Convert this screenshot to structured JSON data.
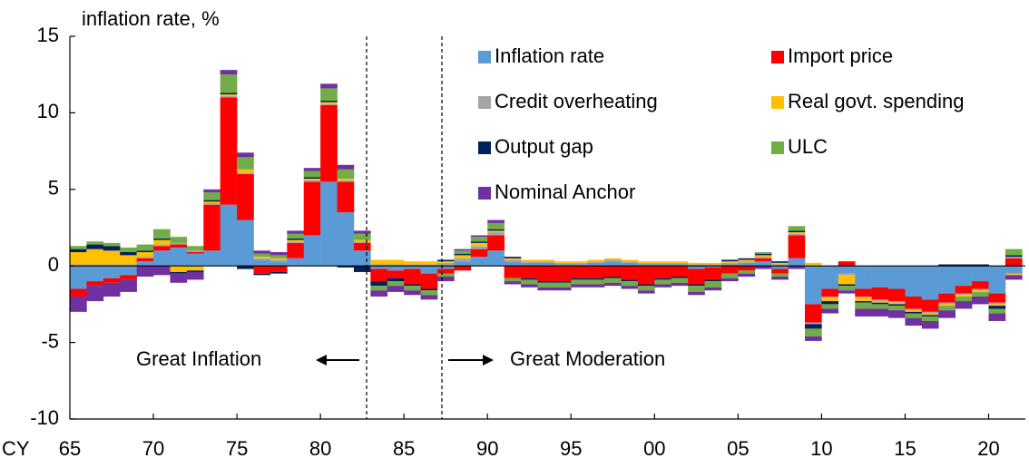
{
  "chart_data": {
    "type": "stacked_bar",
    "y_label": "inflation rate, %",
    "x_label": "CY",
    "annotations": [
      "Great Inflation",
      "Great Moderation"
    ],
    "x": [
      1965,
      1966,
      1967,
      1968,
      1969,
      1970,
      1971,
      1972,
      1973,
      1974,
      1975,
      1976,
      1977,
      1978,
      1979,
      1980,
      1981,
      1982,
      1983,
      1984,
      1985,
      1986,
      1987,
      1988,
      1989,
      1990,
      1991,
      1992,
      1993,
      1994,
      1995,
      1996,
      1997,
      1998,
      1999,
      2000,
      2001,
      2002,
      2003,
      2004,
      2005,
      2006,
      2007,
      2008,
      2009,
      2010,
      2011,
      2012,
      2013,
      2014,
      2015,
      2016,
      2017,
      2018,
      2019,
      2020,
      2021
    ],
    "xlim": [
      1965,
      2022.2
    ],
    "xticks": [
      {
        "value": 1965,
        "label": "65"
      },
      {
        "value": 1970,
        "label": "70"
      },
      {
        "value": 1975,
        "label": "75"
      },
      {
        "value": 1980,
        "label": "80"
      },
      {
        "value": 1985,
        "label": "85"
      },
      {
        "value": 1990,
        "label": "90"
      },
      {
        "value": 1995,
        "label": "95"
      },
      {
        "value": 2000,
        "label": "00"
      },
      {
        "value": 2005,
        "label": "05"
      },
      {
        "value": 2010,
        "label": "10"
      },
      {
        "value": 2015,
        "label": "15"
      },
      {
        "value": 2020,
        "label": "20"
      }
    ],
    "ylim": [
      -10,
      15
    ],
    "yticks": [
      -10,
      -5,
      0,
      5,
      10,
      15
    ],
    "series": [
      {
        "name": "Inflation rate",
        "color": "#5b9bd5",
        "values": [
          -1.5,
          -1.0,
          -0.8,
          -0.6,
          0.3,
          1.0,
          1.2,
          0.8,
          1.0,
          4.0,
          3.0,
          0.4,
          0.3,
          0.5,
          2.0,
          5.5,
          3.5,
          1.0,
          -0.2,
          -0.3,
          -0.2,
          -0.5,
          -0.2,
          0.3,
          0.6,
          1.0,
          0.3,
          0.2,
          0.2,
          0.1,
          0.1,
          0.2,
          0.3,
          0.2,
          0.1,
          0.1,
          0.1,
          -0.2,
          -0.1,
          0.1,
          0.2,
          0.3,
          -0.2,
          0.5,
          -2.5,
          -1.5,
          -0.5,
          -1.5,
          -1.4,
          -1.5,
          -2.0,
          -2.2,
          -1.8,
          -1.3,
          -1.0,
          -1.8,
          -0.5
        ]
      },
      {
        "name": "Import price",
        "color": "#ff0000",
        "values": [
          -0.5,
          -0.3,
          -0.3,
          -0.3,
          0.2,
          0.3,
          0.2,
          0.1,
          3.0,
          7.0,
          3.0,
          -0.5,
          -0.4,
          1.0,
          3.5,
          5.0,
          2.0,
          0.5,
          -0.8,
          -0.5,
          -1.0,
          -1.0,
          -0.3,
          -0.3,
          0.5,
          1.0,
          -0.8,
          -0.8,
          -1.0,
          -1.0,
          -0.8,
          -0.8,
          -0.7,
          -0.9,
          -1.2,
          -0.8,
          -0.7,
          -1.0,
          -0.8,
          -0.5,
          -0.3,
          0.2,
          -0.3,
          1.5,
          -1.2,
          -0.5,
          0.3,
          -0.5,
          -0.8,
          -0.8,
          -0.8,
          -0.8,
          -0.6,
          -0.5,
          -0.5,
          -0.6,
          0.5
        ]
      },
      {
        "name": "Credit overheating",
        "color": "#a5a5a5",
        "values": [
          0.1,
          0.1,
          0.1,
          0.1,
          0.1,
          0.1,
          0.1,
          0.1,
          0.1,
          0.1,
          0.1,
          0.1,
          0.1,
          0.1,
          0.1,
          0.1,
          0.1,
          0.1,
          0.1,
          0.1,
          0.1,
          0.1,
          0.2,
          0.2,
          0.2,
          0.2,
          0.1,
          0.1,
          0.1,
          0.1,
          0.1,
          0.1,
          0.1,
          0.1,
          0.1,
          0.1,
          0.1,
          0.1,
          0.1,
          0.1,
          0.1,
          0.1,
          0.1,
          0.1,
          -0.1,
          -0.1,
          -0.1,
          -0.1,
          -0.1,
          -0.1,
          -0.1,
          -0.1,
          -0.1,
          -0.1,
          -0.1,
          -0.1,
          0.1
        ]
      },
      {
        "name": "Real govt. spending",
        "color": "#ffc000",
        "values": [
          0.8,
          1.0,
          0.9,
          0.6,
          0.3,
          0.3,
          -0.4,
          -0.3,
          0.1,
          0.1,
          0.2,
          0.1,
          0.1,
          0.1,
          0.1,
          0.1,
          0.1,
          0.1,
          0.3,
          0.3,
          0.2,
          0.2,
          0.1,
          0.2,
          0.2,
          0.1,
          0.1,
          0.1,
          0.1,
          0.1,
          0.1,
          0.1,
          0.1,
          0.1,
          0.1,
          0.1,
          0.1,
          0.1,
          0.1,
          0.1,
          0.1,
          0.1,
          0.1,
          0.1,
          0.2,
          -0.2,
          -0.6,
          -0.2,
          -0.1,
          -0.1,
          -0.1,
          -0.1,
          -0.1,
          -0.1,
          -0.1,
          -0.1,
          -0.1
        ]
      },
      {
        "name": "Output gap",
        "color": "#002060",
        "values": [
          0.2,
          0.3,
          0.3,
          0.2,
          0.1,
          0.1,
          -0.1,
          -0.1,
          0.1,
          0.1,
          -0.2,
          -0.1,
          -0.1,
          0.1,
          0.1,
          0.1,
          -0.1,
          -0.4,
          -0.3,
          -0.2,
          -0.1,
          -0.1,
          0.1,
          0.1,
          0.1,
          0.1,
          0.1,
          -0.1,
          -0.1,
          -0.1,
          -0.1,
          -0.1,
          -0.1,
          -0.1,
          -0.1,
          -0.1,
          -0.1,
          -0.1,
          -0.1,
          0.1,
          0.1,
          0.1,
          0.1,
          0.1,
          -0.3,
          -0.2,
          -0.1,
          -0.1,
          -0.1,
          -0.1,
          -0.1,
          -0.1,
          0.1,
          0.1,
          0.1,
          -0.2,
          0.1
        ]
      },
      {
        "name": "ULC",
        "color": "#70ad47",
        "values": [
          0.2,
          0.2,
          0.2,
          0.3,
          0.4,
          0.6,
          0.4,
          0.3,
          0.5,
          1.2,
          0.8,
          0.2,
          0.2,
          0.3,
          0.4,
          0.8,
          0.6,
          0.4,
          -0.3,
          -0.3,
          -0.3,
          -0.3,
          -0.2,
          0.2,
          0.3,
          0.4,
          -0.2,
          -0.3,
          -0.3,
          -0.3,
          -0.3,
          -0.3,
          -0.3,
          -0.3,
          -0.3,
          -0.3,
          -0.3,
          -0.4,
          -0.4,
          -0.3,
          -0.2,
          0.1,
          -0.2,
          0.3,
          -0.5,
          -0.3,
          -0.3,
          -0.4,
          -0.3,
          -0.3,
          -0.3,
          -0.3,
          -0.3,
          -0.3,
          -0.3,
          -0.3,
          0.4
        ]
      },
      {
        "name": "Nominal Anchor",
        "color": "#7030a0",
        "values": [
          -1.0,
          -1.0,
          -0.9,
          -0.8,
          -0.7,
          -0.6,
          -0.6,
          -0.5,
          0.2,
          0.3,
          0.3,
          0.2,
          0.2,
          0.2,
          0.2,
          0.3,
          0.3,
          0.2,
          -0.4,
          -0.4,
          -0.3,
          -0.3,
          -0.3,
          0.1,
          0.1,
          0.2,
          -0.2,
          -0.2,
          -0.2,
          -0.2,
          -0.2,
          -0.2,
          -0.2,
          -0.2,
          -0.2,
          -0.2,
          -0.2,
          -0.2,
          -0.2,
          -0.2,
          -0.2,
          -0.2,
          -0.2,
          -0.2,
          -0.3,
          -0.3,
          -0.2,
          -0.5,
          -0.5,
          -0.5,
          -0.5,
          -0.5,
          -0.5,
          -0.5,
          -0.5,
          -0.5,
          -0.3
        ]
      }
    ]
  }
}
